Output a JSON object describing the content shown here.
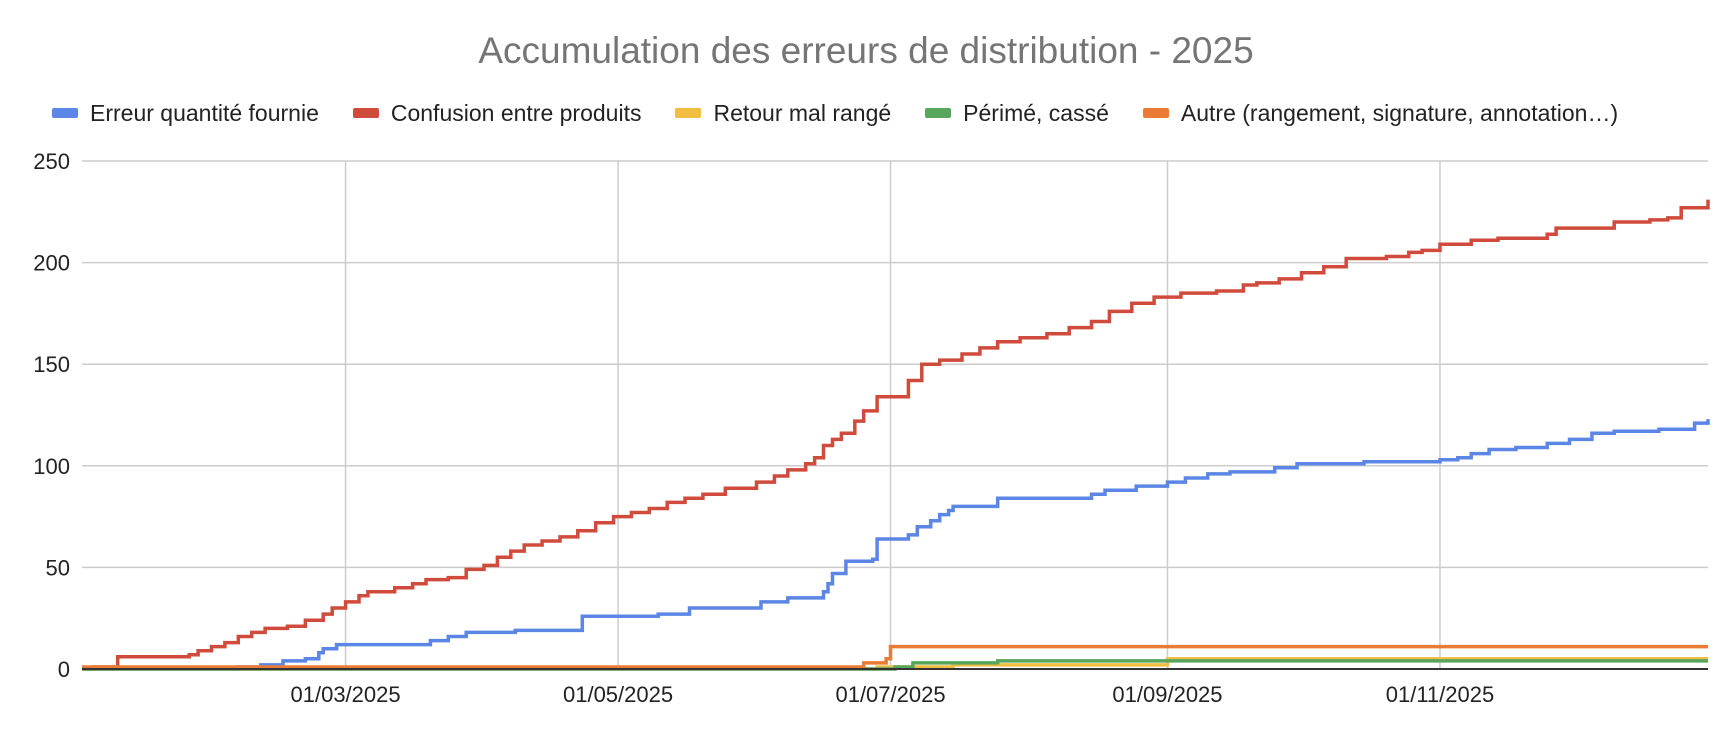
{
  "chart_data": {
    "type": "line",
    "title": "Accumulation des erreurs de distribution - 2025",
    "xlabel": "",
    "ylabel": "",
    "x_range": [
      "2025-01-01",
      "2025-12-31"
    ],
    "ylim": [
      0,
      250
    ],
    "y_ticks": [
      "0",
      "50",
      "100",
      "150",
      "200",
      "250"
    ],
    "x_ticks": [
      {
        "date": "2025-03-01",
        "label": "01/03/2025"
      },
      {
        "date": "2025-05-01",
        "label": "01/05/2025"
      },
      {
        "date": "2025-07-01",
        "label": "01/07/2025"
      },
      {
        "date": "2025-09-01",
        "label": "01/09/2025"
      },
      {
        "date": "2025-11-01",
        "label": "01/11/2025"
      }
    ],
    "grid": true,
    "legend_position": "top",
    "step": true,
    "series": [
      {
        "name": "Erreur quantité fournie",
        "color": "#5b86e5",
        "points": [
          [
            "2025-01-01",
            0
          ],
          [
            "2025-02-01",
            0
          ],
          [
            "2025-02-05",
            1
          ],
          [
            "2025-02-10",
            2
          ],
          [
            "2025-02-15",
            4
          ],
          [
            "2025-02-20",
            5
          ],
          [
            "2025-02-23",
            8
          ],
          [
            "2025-02-24",
            10
          ],
          [
            "2025-02-27",
            12
          ],
          [
            "2025-03-15",
            12
          ],
          [
            "2025-03-20",
            14
          ],
          [
            "2025-03-24",
            16
          ],
          [
            "2025-03-28",
            18
          ],
          [
            "2025-04-08",
            19
          ],
          [
            "2025-04-22",
            19
          ],
          [
            "2025-04-23",
            26
          ],
          [
            "2025-05-10",
            27
          ],
          [
            "2025-05-17",
            30
          ],
          [
            "2025-06-01",
            30
          ],
          [
            "2025-06-02",
            33
          ],
          [
            "2025-06-08",
            35
          ],
          [
            "2025-06-16",
            38
          ],
          [
            "2025-06-17",
            42
          ],
          [
            "2025-06-18",
            47
          ],
          [
            "2025-06-21",
            53
          ],
          [
            "2025-06-27",
            54
          ],
          [
            "2025-06-28",
            64
          ],
          [
            "2025-07-05",
            66
          ],
          [
            "2025-07-07",
            70
          ],
          [
            "2025-07-10",
            73
          ],
          [
            "2025-07-12",
            76
          ],
          [
            "2025-07-14",
            78
          ],
          [
            "2025-07-15",
            80
          ],
          [
            "2025-07-23",
            80
          ],
          [
            "2025-07-25",
            84
          ],
          [
            "2025-08-10",
            84
          ],
          [
            "2025-08-15",
            86
          ],
          [
            "2025-08-18",
            88
          ],
          [
            "2025-08-25",
            90
          ],
          [
            "2025-09-01",
            92
          ],
          [
            "2025-09-05",
            94
          ],
          [
            "2025-09-10",
            96
          ],
          [
            "2025-09-15",
            97
          ],
          [
            "2025-09-21",
            97
          ],
          [
            "2025-09-25",
            99
          ],
          [
            "2025-09-30",
            101
          ],
          [
            "2025-10-10",
            101
          ],
          [
            "2025-10-15",
            102
          ],
          [
            "2025-10-28",
            102
          ],
          [
            "2025-11-01",
            103
          ],
          [
            "2025-11-05",
            104
          ],
          [
            "2025-11-08",
            106
          ],
          [
            "2025-11-12",
            108
          ],
          [
            "2025-11-18",
            109
          ],
          [
            "2025-11-25",
            111
          ],
          [
            "2025-11-30",
            113
          ],
          [
            "2025-12-05",
            116
          ],
          [
            "2025-12-10",
            117
          ],
          [
            "2025-12-20",
            118
          ],
          [
            "2025-12-28",
            121
          ],
          [
            "2025-12-31",
            123
          ]
        ]
      },
      {
        "name": "Confusion entre produits",
        "color": "#d04b3c",
        "points": [
          [
            "2025-01-01",
            0
          ],
          [
            "2025-01-04",
            1
          ],
          [
            "2025-01-09",
            6
          ],
          [
            "2025-01-25",
            7
          ],
          [
            "2025-01-27",
            9
          ],
          [
            "2025-01-30",
            11
          ],
          [
            "2025-02-02",
            13
          ],
          [
            "2025-02-05",
            16
          ],
          [
            "2025-02-08",
            18
          ],
          [
            "2025-02-11",
            20
          ],
          [
            "2025-02-16",
            21
          ],
          [
            "2025-02-20",
            24
          ],
          [
            "2025-02-24",
            27
          ],
          [
            "2025-02-26",
            30
          ],
          [
            "2025-03-01",
            33
          ],
          [
            "2025-03-04",
            36
          ],
          [
            "2025-03-06",
            38
          ],
          [
            "2025-03-12",
            40
          ],
          [
            "2025-03-16",
            42
          ],
          [
            "2025-03-19",
            44
          ],
          [
            "2025-03-24",
            45
          ],
          [
            "2025-03-28",
            49
          ],
          [
            "2025-04-01",
            51
          ],
          [
            "2025-04-04",
            55
          ],
          [
            "2025-04-07",
            58
          ],
          [
            "2025-04-10",
            61
          ],
          [
            "2025-04-14",
            63
          ],
          [
            "2025-04-18",
            65
          ],
          [
            "2025-04-22",
            68
          ],
          [
            "2025-04-26",
            72
          ],
          [
            "2025-04-30",
            75
          ],
          [
            "2025-05-04",
            77
          ],
          [
            "2025-05-08",
            79
          ],
          [
            "2025-05-12",
            82
          ],
          [
            "2025-05-16",
            84
          ],
          [
            "2025-05-20",
            86
          ],
          [
            "2025-05-25",
            89
          ],
          [
            "2025-06-01",
            92
          ],
          [
            "2025-06-05",
            95
          ],
          [
            "2025-06-08",
            98
          ],
          [
            "2025-06-12",
            101
          ],
          [
            "2025-06-14",
            104
          ],
          [
            "2025-06-16",
            110
          ],
          [
            "2025-06-18",
            113
          ],
          [
            "2025-06-20",
            116
          ],
          [
            "2025-06-23",
            122
          ],
          [
            "2025-06-25",
            127
          ],
          [
            "2025-06-28",
            134
          ],
          [
            "2025-07-05",
            142
          ],
          [
            "2025-07-08",
            150
          ],
          [
            "2025-07-12",
            152
          ],
          [
            "2025-07-17",
            155
          ],
          [
            "2025-07-21",
            158
          ],
          [
            "2025-07-25",
            161
          ],
          [
            "2025-07-30",
            163
          ],
          [
            "2025-08-05",
            165
          ],
          [
            "2025-08-10",
            168
          ],
          [
            "2025-08-15",
            171
          ],
          [
            "2025-08-19",
            176
          ],
          [
            "2025-08-24",
            180
          ],
          [
            "2025-08-29",
            183
          ],
          [
            "2025-09-04",
            185
          ],
          [
            "2025-09-12",
            186
          ],
          [
            "2025-09-18",
            189
          ],
          [
            "2025-09-21",
            190
          ],
          [
            "2025-09-26",
            192
          ],
          [
            "2025-10-01",
            195
          ],
          [
            "2025-10-06",
            198
          ],
          [
            "2025-10-11",
            202
          ],
          [
            "2025-10-20",
            203
          ],
          [
            "2025-10-25",
            205
          ],
          [
            "2025-10-28",
            206
          ],
          [
            "2025-11-01",
            209
          ],
          [
            "2025-11-08",
            211
          ],
          [
            "2025-11-14",
            212
          ],
          [
            "2025-11-25",
            214
          ],
          [
            "2025-11-27",
            217
          ],
          [
            "2025-12-05",
            217
          ],
          [
            "2025-12-10",
            220
          ],
          [
            "2025-12-18",
            221
          ],
          [
            "2025-12-22",
            222
          ],
          [
            "2025-12-25",
            227
          ],
          [
            "2025-12-31",
            231
          ]
        ]
      },
      {
        "name": "Retour mal rangé",
        "color": "#f1be42",
        "points": [
          [
            "2025-01-01",
            0
          ],
          [
            "2025-06-27",
            0
          ],
          [
            "2025-06-28",
            1
          ],
          [
            "2025-07-10",
            1
          ],
          [
            "2025-07-15",
            2
          ],
          [
            "2025-07-25",
            2
          ],
          [
            "2025-08-10",
            2
          ],
          [
            "2025-09-01",
            5
          ],
          [
            "2025-12-31",
            5
          ]
        ]
      },
      {
        "name": "Périmé, cassé",
        "color": "#58a55c",
        "points": [
          [
            "2025-01-01",
            0
          ],
          [
            "2025-06-28",
            0
          ],
          [
            "2025-07-02",
            1
          ],
          [
            "2025-07-06",
            3
          ],
          [
            "2025-07-15",
            3
          ],
          [
            "2025-07-25",
            4
          ],
          [
            "2025-12-31",
            4
          ]
        ]
      },
      {
        "name": "Autre (rangement, signature, annotation…)",
        "color": "#eb7b34",
        "points": [
          [
            "2025-01-01",
            1
          ],
          [
            "2025-06-22",
            1
          ],
          [
            "2025-06-25",
            3
          ],
          [
            "2025-06-30",
            5
          ],
          [
            "2025-07-01",
            11
          ],
          [
            "2025-12-31",
            11
          ]
        ]
      }
    ]
  }
}
